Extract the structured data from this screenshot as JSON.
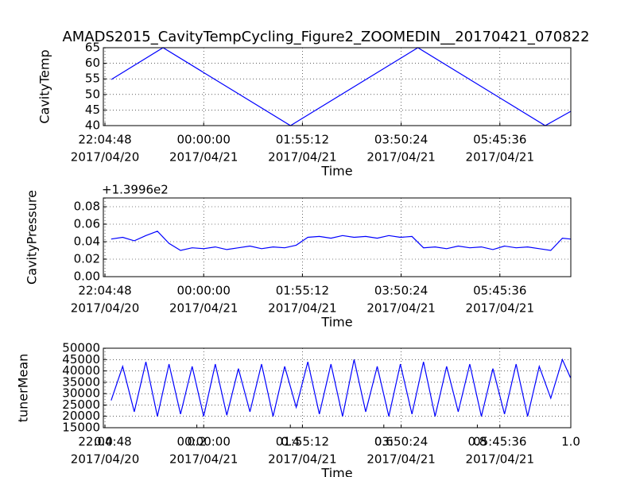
{
  "chart_data": [
    {
      "type": "line",
      "title": "AMADS2015_CavityTempCycling_Figure2_ZOOMEDIN__20170421_070822",
      "ylabel": "CavityTemp",
      "xlabel": "Time",
      "grid": true,
      "x": [
        "2017-04-20 22:12:12",
        "2017-04-20 23:12:36",
        "2017-04-21 01:41:18",
        "2017-04-21 04:09:54",
        "2017-04-21 06:38:30",
        "2017-04-21 07:08:22"
      ],
      "color": "#0000ff",
      "values": [
        54.8,
        65,
        40,
        65,
        40,
        44.6
      ],
      "xlim": [
        "2017-04-20 22:02:55",
        "2017-04-21 07:08:22"
      ],
      "ylim": [
        40,
        65
      ],
      "xticks": [
        {
          "value": "2017-04-20 22:04:48",
          "label": [
            "22:04:48",
            "2017/04/20"
          ]
        },
        {
          "value": "2017-04-21 00:00:00",
          "label": [
            "00:00:00",
            "2017/04/21"
          ]
        },
        {
          "value": "2017-04-21 01:55:12",
          "label": [
            "01:55:12",
            "2017/04/21"
          ]
        },
        {
          "value": "2017-04-21 03:50:24",
          "label": [
            "03:50:24",
            "2017/04/21"
          ]
        },
        {
          "value": "2017-04-21 05:45:36",
          "label": [
            "05:45:36",
            "2017/04/21"
          ]
        }
      ],
      "yticks": [
        40,
        45,
        50,
        55,
        60,
        65
      ]
    },
    {
      "type": "line",
      "ylabel": "CavityPressure",
      "xlabel": "Time",
      "y_offset_label": "+1.3996e2",
      "grid": true,
      "x": [
        "2017-04-20 22:12:00",
        "2017-04-20 22:25:30",
        "2017-04-20 22:39:00",
        "2017-04-20 22:52:30",
        "2017-04-20 23:06:00",
        "2017-04-20 23:19:30",
        "2017-04-20 23:33:00",
        "2017-04-20 23:46:30",
        "2017-04-21 00:00:00",
        "2017-04-21 00:13:30",
        "2017-04-21 00:27:00",
        "2017-04-21 00:40:30",
        "2017-04-21 00:54:00",
        "2017-04-21 01:07:30",
        "2017-04-21 01:21:00",
        "2017-04-21 01:34:30",
        "2017-04-21 01:48:00",
        "2017-04-21 02:01:30",
        "2017-04-21 02:15:00",
        "2017-04-21 02:28:30",
        "2017-04-21 02:42:00",
        "2017-04-21 02:55:30",
        "2017-04-21 03:09:00",
        "2017-04-21 03:22:30",
        "2017-04-21 03:36:00",
        "2017-04-21 03:49:30",
        "2017-04-21 04:03:00",
        "2017-04-21 04:16:30",
        "2017-04-21 04:30:00",
        "2017-04-21 04:43:30",
        "2017-04-21 04:57:00",
        "2017-04-21 05:10:30",
        "2017-04-21 05:24:00",
        "2017-04-21 05:37:30",
        "2017-04-21 05:51:00",
        "2017-04-21 06:04:30",
        "2017-04-21 06:18:00",
        "2017-04-21 06:31:30",
        "2017-04-21 06:45:00",
        "2017-04-21 06:58:30",
        "2017-04-21 07:08:00"
      ],
      "color": "#0000ff",
      "values": [
        0.043,
        0.045,
        0.041,
        0.047,
        0.052,
        0.038,
        0.03,
        0.033,
        0.032,
        0.034,
        0.031,
        0.033,
        0.035,
        0.032,
        0.034,
        0.033,
        0.036,
        0.045,
        0.046,
        0.044,
        0.047,
        0.045,
        0.046,
        0.044,
        0.047,
        0.045,
        0.046,
        0.033,
        0.034,
        0.032,
        0.035,
        0.033,
        0.034,
        0.031,
        0.035,
        0.033,
        0.034,
        0.032,
        0.03,
        0.044,
        0.043
      ],
      "xlim": [
        "2017-04-20 22:02:55",
        "2017-04-21 07:08:22"
      ],
      "ylim": [
        0,
        0.09
      ],
      "xticks": [
        {
          "value": "2017-04-20 22:04:48",
          "label": [
            "22:04:48",
            "2017/04/20"
          ]
        },
        {
          "value": "2017-04-21 00:00:00",
          "label": [
            "00:00:00",
            "2017/04/21"
          ]
        },
        {
          "value": "2017-04-21 01:55:12",
          "label": [
            "01:55:12",
            "2017/04/21"
          ]
        },
        {
          "value": "2017-04-21 03:50:24",
          "label": [
            "03:50:24",
            "2017/04/21"
          ]
        },
        {
          "value": "2017-04-21 05:45:36",
          "label": [
            "05:45:36",
            "2017/04/21"
          ]
        }
      ],
      "yticks": [
        {
          "value": 0,
          "label": "0.00"
        },
        {
          "value": 0.02,
          "label": "0.02"
        },
        {
          "value": 0.04,
          "label": "0.04"
        },
        {
          "value": 0.06,
          "label": "0.06"
        },
        {
          "value": 0.08,
          "label": "0.08"
        }
      ]
    },
    {
      "type": "line",
      "ylabel": "tunerMean",
      "xlabel": "Time",
      "grid": true,
      "x": [
        "2017-04-20 22:12:00",
        "2017-04-20 22:25:30",
        "2017-04-20 22:39:00",
        "2017-04-20 22:52:30",
        "2017-04-20 23:06:00",
        "2017-04-20 23:19:30",
        "2017-04-20 23:33:00",
        "2017-04-20 23:46:30",
        "2017-04-21 00:00:00",
        "2017-04-21 00:13:30",
        "2017-04-21 00:27:00",
        "2017-04-21 00:40:30",
        "2017-04-21 00:54:00",
        "2017-04-21 01:07:30",
        "2017-04-21 01:21:00",
        "2017-04-21 01:34:30",
        "2017-04-21 01:48:00",
        "2017-04-21 02:01:30",
        "2017-04-21 02:15:00",
        "2017-04-21 02:28:30",
        "2017-04-21 02:42:00",
        "2017-04-21 02:55:30",
        "2017-04-21 03:09:00",
        "2017-04-21 03:22:30",
        "2017-04-21 03:36:00",
        "2017-04-21 03:49:30",
        "2017-04-21 04:03:00",
        "2017-04-21 04:16:30",
        "2017-04-21 04:30:00",
        "2017-04-21 04:43:30",
        "2017-04-21 04:57:00",
        "2017-04-21 05:10:30",
        "2017-04-21 05:24:00",
        "2017-04-21 05:37:30",
        "2017-04-21 05:51:00",
        "2017-04-21 06:04:30",
        "2017-04-21 06:18:00",
        "2017-04-21 06:31:30",
        "2017-04-21 06:45:00",
        "2017-04-21 06:58:30",
        "2017-04-21 07:08:00"
      ],
      "color": "#0000ff",
      "values": [
        27000,
        42000,
        22000,
        44000,
        20000,
        43000,
        21000,
        42000,
        20000,
        43000,
        20500,
        41000,
        22000,
        43000,
        20000,
        42000,
        24000,
        44000,
        21000,
        43000,
        20000,
        45000,
        22000,
        42000,
        20000,
        43000,
        21000,
        44000,
        20000,
        42000,
        22000,
        43000,
        20000,
        41000,
        21000,
        43000,
        20000,
        42000,
        28000,
        45000,
        37000
      ],
      "xlim": [
        "2017-04-20 22:02:55",
        "2017-04-21 07:08:22"
      ],
      "ylim": [
        15000,
        50000
      ],
      "xticks": [
        {
          "value": "2017-04-20 22:04:48",
          "label": [
            "22:04:48",
            "2017/04/20"
          ]
        },
        {
          "value": "2017-04-21 00:00:00",
          "label": [
            "00:00:00",
            "2017/04/21"
          ]
        },
        {
          "value": "2017-04-21 01:55:12",
          "label": [
            "01:55:12",
            "2017/04/21"
          ]
        },
        {
          "value": "2017-04-21 03:50:24",
          "label": [
            "03:50:24",
            "2017/04/21"
          ]
        },
        {
          "value": "2017-04-21 05:45:36",
          "label": [
            "05:45:36",
            "2017/04/21"
          ]
        }
      ],
      "yticks": [
        15000,
        20000,
        25000,
        30000,
        35000,
        40000,
        45000,
        50000
      ],
      "x2lim": [
        0,
        1
      ],
      "x2ticks": [
        {
          "value": 0,
          "label": "0.0"
        },
        {
          "value": 0.2,
          "label": "0.2"
        },
        {
          "value": 0.4,
          "label": "0.4"
        },
        {
          "value": 0.6,
          "label": "0.6"
        },
        {
          "value": 0.8,
          "label": "0.8"
        },
        {
          "value": 1,
          "label": "1.0"
        }
      ]
    }
  ]
}
